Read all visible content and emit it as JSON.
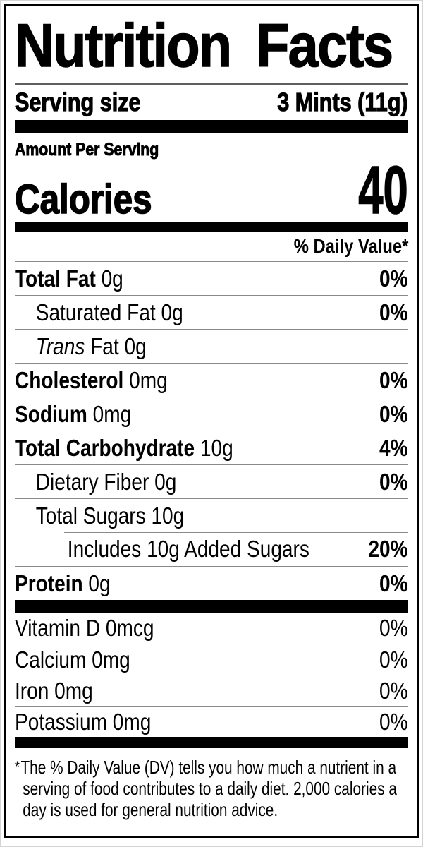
{
  "label": {
    "title": "Nutrition Facts",
    "serving": {
      "label": "Serving size",
      "value": "3 Mints (11g)"
    },
    "amount_per_serving": "Amount Per Serving",
    "calories": {
      "label": "Calories",
      "value": "40"
    },
    "daily_value_header": "% Daily Value*",
    "nutrients": [
      {
        "bold": "Total Fat",
        "rest": " 0g",
        "dv": "0%"
      },
      {
        "rest": "Saturated Fat 0g",
        "dv": "0%"
      },
      {
        "italic": "Trans",
        "rest": " Fat 0g",
        "dv": ""
      },
      {
        "bold": "Cholesterol",
        "rest": " 0mg",
        "dv": "0%"
      },
      {
        "bold": "Sodium",
        "rest": " 0mg",
        "dv": "0%"
      },
      {
        "bold": "Total Carbohydrate",
        "rest": " 10g",
        "dv": "4%"
      },
      {
        "rest": "Dietary Fiber 0g",
        "dv": "0%"
      },
      {
        "rest": "Total Sugars 10g",
        "dv": ""
      },
      {
        "rest": "Includes 10g Added Sugars",
        "dv": "20%"
      },
      {
        "bold": "Protein",
        "rest": " 0g",
        "dv": "0%"
      }
    ],
    "micronutrients": [
      {
        "name": "Vitamin D 0mcg",
        "dv": "0%"
      },
      {
        "name": "Calcium 0mg",
        "dv": "0%"
      },
      {
        "name": "Iron 0mg",
        "dv": "0%"
      },
      {
        "name": "Potassium 0mg",
        "dv": "0%"
      }
    ],
    "footnote_marker": "*",
    "footnote": "The % Daily Value (DV) tells you how much a nutrient in a serving of food contributes to a daily diet. 2,000 calories a day is used for general nutrition advice.",
    "colors": {
      "ink": "#000000",
      "paper": "#ffffff",
      "hairline": "#8a8a8a"
    }
  }
}
